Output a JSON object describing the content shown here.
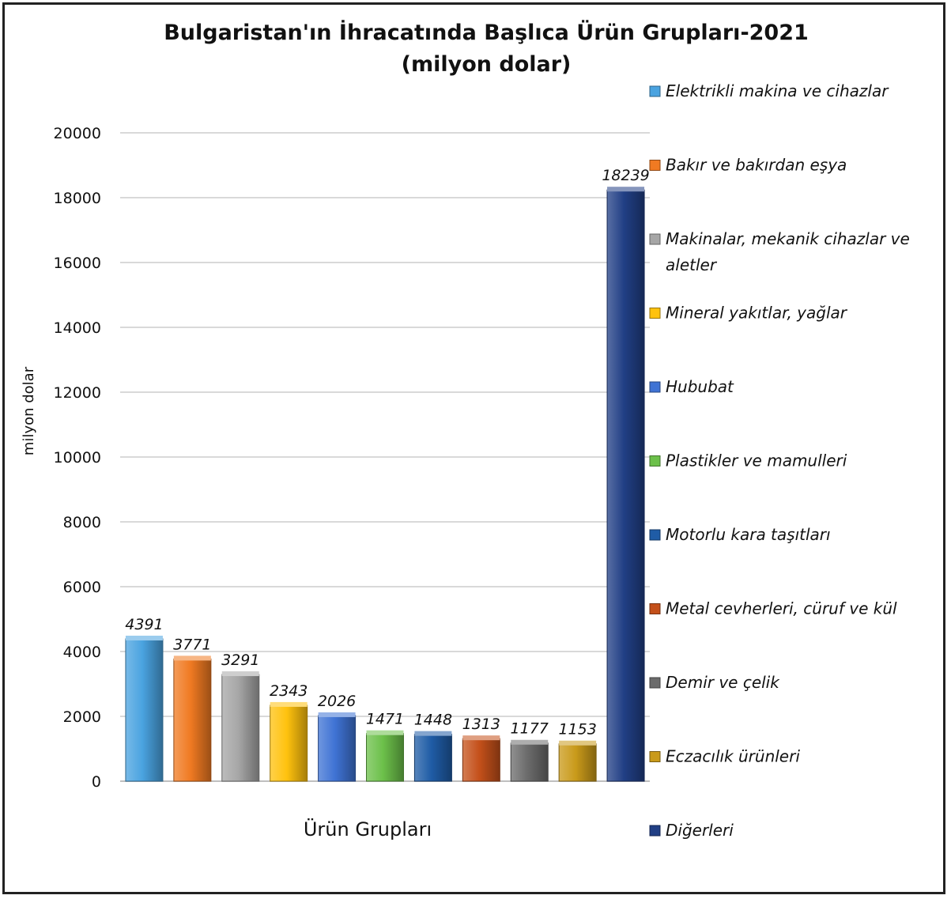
{
  "chart_data": {
    "type": "bar",
    "title": "Bulgaristan'ın İhracatında Başlıca Ürün Grupları-2021",
    "subtitle": "(milyon dolar)",
    "xlabel": "Ürün Grupları",
    "ylabel": "milyon dolar",
    "ylim": [
      0,
      20000
    ],
    "yticks": [
      0,
      2000,
      4000,
      6000,
      8000,
      10000,
      12000,
      14000,
      16000,
      18000,
      20000
    ],
    "grid": true,
    "legend_position": "right",
    "series": [
      {
        "name": "Elektrikli makina ve cihazlar",
        "value": 4391,
        "color": "#4aa3e0"
      },
      {
        "name": "Bakır ve bakırdan eşya",
        "value": 3771,
        "color": "#f07a22"
      },
      {
        "name": "Makinalar, mekanik cihazlar ve aletler",
        "value": 3291,
        "color": "#a6a6a6"
      },
      {
        "name": "Mineral yakıtlar, yağlar",
        "value": 2343,
        "color": "#ffc20e"
      },
      {
        "name": "Hububat",
        "value": 2026,
        "color": "#3f73d4"
      },
      {
        "name": "Plastikler ve mamulleri",
        "value": 1471,
        "color": "#6cc04a"
      },
      {
        "name": "Motorlu kara taşıtları",
        "value": 1448,
        "color": "#1f5ca6"
      },
      {
        "name": "Metal cevherleri, cüruf ve kül",
        "value": 1313,
        "color": "#c4501a"
      },
      {
        "name": "Demir ve çelik",
        "value": 1177,
        "color": "#6b6b6b"
      },
      {
        "name": "Eczacılık ürünleri",
        "value": 1153,
        "color": "#c99a1a"
      },
      {
        "name": "Diğerleri",
        "value": 18239,
        "color": "#213f85"
      }
    ]
  }
}
